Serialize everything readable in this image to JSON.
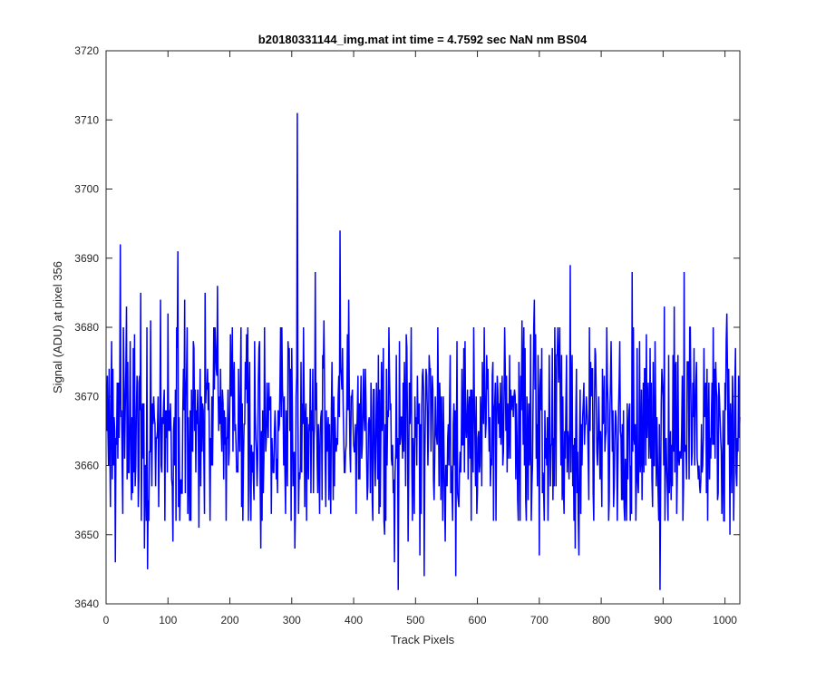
{
  "chart_data": {
    "type": "line",
    "title": "b20180331144_img.mat int time = 4.7592 sec  NaN nm BS04",
    "xlabel": "Track Pixels",
    "ylabel": "Signal (ADU) at pixel 356",
    "xlim": [
      0,
      1024
    ],
    "ylim": [
      3640,
      3720
    ],
    "xticks": [
      0,
      100,
      200,
      300,
      400,
      500,
      600,
      700,
      800,
      900,
      1000
    ],
    "yticks": [
      3640,
      3650,
      3660,
      3670,
      3680,
      3690,
      3700,
      3710,
      3720
    ],
    "grid": false,
    "legend": "none",
    "series": [
      {
        "color": "#0000ff",
        "point_count": 1024,
        "sampled_values": [
          {
            "x": 1,
            "y": 3665
          },
          {
            "x": 5,
            "y": 3674
          },
          {
            "x": 10,
            "y": 3658
          },
          {
            "x": 15,
            "y": 3646
          },
          {
            "x": 20,
            "y": 3672
          },
          {
            "x": 23,
            "y": 3692
          },
          {
            "x": 27,
            "y": 3653
          },
          {
            "x": 33,
            "y": 3683
          },
          {
            "x": 40,
            "y": 3661
          },
          {
            "x": 46,
            "y": 3679
          },
          {
            "x": 52,
            "y": 3654
          },
          {
            "x": 56,
            "y": 3685
          },
          {
            "x": 62,
            "y": 3648
          },
          {
            "x": 67,
            "y": 3645
          },
          {
            "x": 72,
            "y": 3681
          },
          {
            "x": 80,
            "y": 3657
          },
          {
            "x": 88,
            "y": 3684
          },
          {
            "x": 95,
            "y": 3652
          },
          {
            "x": 100,
            "y": 3682
          },
          {
            "x": 108,
            "y": 3649
          },
          {
            "x": 116,
            "y": 3691
          },
          {
            "x": 120,
            "y": 3657
          },
          {
            "x": 127,
            "y": 3684
          },
          {
            "x": 135,
            "y": 3652
          },
          {
            "x": 142,
            "y": 3677
          },
          {
            "x": 150,
            "y": 3651
          },
          {
            "x": 160,
            "y": 3685
          },
          {
            "x": 170,
            "y": 3660
          },
          {
            "x": 180,
            "y": 3686
          },
          {
            "x": 190,
            "y": 3658
          },
          {
            "x": 200,
            "y": 3670
          },
          {
            "x": 210,
            "y": 3663
          },
          {
            "x": 220,
            "y": 3669
          },
          {
            "x": 230,
            "y": 3652
          },
          {
            "x": 240,
            "y": 3678
          },
          {
            "x": 250,
            "y": 3648
          },
          {
            "x": 260,
            "y": 3672
          },
          {
            "x": 270,
            "y": 3659
          },
          {
            "x": 280,
            "y": 3666
          },
          {
            "x": 290,
            "y": 3653
          },
          {
            "x": 300,
            "y": 3677
          },
          {
            "x": 305,
            "y": 3648
          },
          {
            "x": 309,
            "y": 3711
          },
          {
            "x": 312,
            "y": 3659
          },
          {
            "x": 320,
            "y": 3670
          },
          {
            "x": 330,
            "y": 3674
          },
          {
            "x": 338,
            "y": 3688
          },
          {
            "x": 345,
            "y": 3653
          },
          {
            "x": 352,
            "y": 3681
          },
          {
            "x": 360,
            "y": 3655
          },
          {
            "x": 370,
            "y": 3667
          },
          {
            "x": 378,
            "y": 3694
          },
          {
            "x": 385,
            "y": 3659
          },
          {
            "x": 392,
            "y": 3684
          },
          {
            "x": 400,
            "y": 3663
          },
          {
            "x": 410,
            "y": 3658
          },
          {
            "x": 420,
            "y": 3669
          },
          {
            "x": 430,
            "y": 3655
          },
          {
            "x": 440,
            "y": 3676
          },
          {
            "x": 450,
            "y": 3650
          },
          {
            "x": 460,
            "y": 3669
          },
          {
            "x": 466,
            "y": 3646
          },
          {
            "x": 472,
            "y": 3642
          },
          {
            "x": 480,
            "y": 3672
          },
          {
            "x": 488,
            "y": 3649
          },
          {
            "x": 500,
            "y": 3664
          },
          {
            "x": 507,
            "y": 3647
          },
          {
            "x": 514,
            "y": 3644
          },
          {
            "x": 522,
            "y": 3676
          },
          {
            "x": 530,
            "y": 3655
          },
          {
            "x": 540,
            "y": 3669
          },
          {
            "x": 548,
            "y": 3649
          },
          {
            "x": 556,
            "y": 3676
          },
          {
            "x": 565,
            "y": 3644
          },
          {
            "x": 575,
            "y": 3674
          },
          {
            "x": 585,
            "y": 3658
          },
          {
            "x": 594,
            "y": 3680
          },
          {
            "x": 603,
            "y": 3659
          },
          {
            "x": 612,
            "y": 3671
          },
          {
            "x": 622,
            "y": 3661
          },
          {
            "x": 632,
            "y": 3673
          },
          {
            "x": 642,
            "y": 3662
          },
          {
            "x": 652,
            "y": 3676
          },
          {
            "x": 662,
            "y": 3658
          },
          {
            "x": 672,
            "y": 3681
          },
          {
            "x": 682,
            "y": 3655
          },
          {
            "x": 692,
            "y": 3684
          },
          {
            "x": 700,
            "y": 3647
          },
          {
            "x": 708,
            "y": 3652
          },
          {
            "x": 716,
            "y": 3676
          },
          {
            "x": 724,
            "y": 3657
          },
          {
            "x": 732,
            "y": 3674
          },
          {
            "x": 740,
            "y": 3653
          },
          {
            "x": 747,
            "y": 3663
          },
          {
            "x": 750,
            "y": 3689
          },
          {
            "x": 758,
            "y": 3648
          },
          {
            "x": 764,
            "y": 3647
          },
          {
            "x": 770,
            "y": 3667
          },
          {
            "x": 780,
            "y": 3655
          },
          {
            "x": 790,
            "y": 3677
          },
          {
            "x": 800,
            "y": 3661
          },
          {
            "x": 810,
            "y": 3672
          },
          {
            "x": 820,
            "y": 3654
          },
          {
            "x": 830,
            "y": 3678
          },
          {
            "x": 840,
            "y": 3658
          },
          {
            "x": 850,
            "y": 3688
          },
          {
            "x": 860,
            "y": 3656
          },
          {
            "x": 870,
            "y": 3674
          },
          {
            "x": 880,
            "y": 3661
          },
          {
            "x": 890,
            "y": 3667
          },
          {
            "x": 895,
            "y": 3642
          },
          {
            "x": 902,
            "y": 3683
          },
          {
            "x": 910,
            "y": 3656
          },
          {
            "x": 918,
            "y": 3683
          },
          {
            "x": 925,
            "y": 3661
          },
          {
            "x": 934,
            "y": 3688
          },
          {
            "x": 942,
            "y": 3658
          },
          {
            "x": 950,
            "y": 3677
          },
          {
            "x": 958,
            "y": 3660
          },
          {
            "x": 966,
            "y": 3677
          },
          {
            "x": 975,
            "y": 3658
          },
          {
            "x": 985,
            "y": 3675
          },
          {
            "x": 995,
            "y": 3653
          },
          {
            "x": 1003,
            "y": 3682
          },
          {
            "x": 1008,
            "y": 3650
          },
          {
            "x": 1012,
            "y": 3673
          },
          {
            "x": 1018,
            "y": 3659
          },
          {
            "x": 1024,
            "y": 3667
          }
        ]
      }
    ]
  }
}
